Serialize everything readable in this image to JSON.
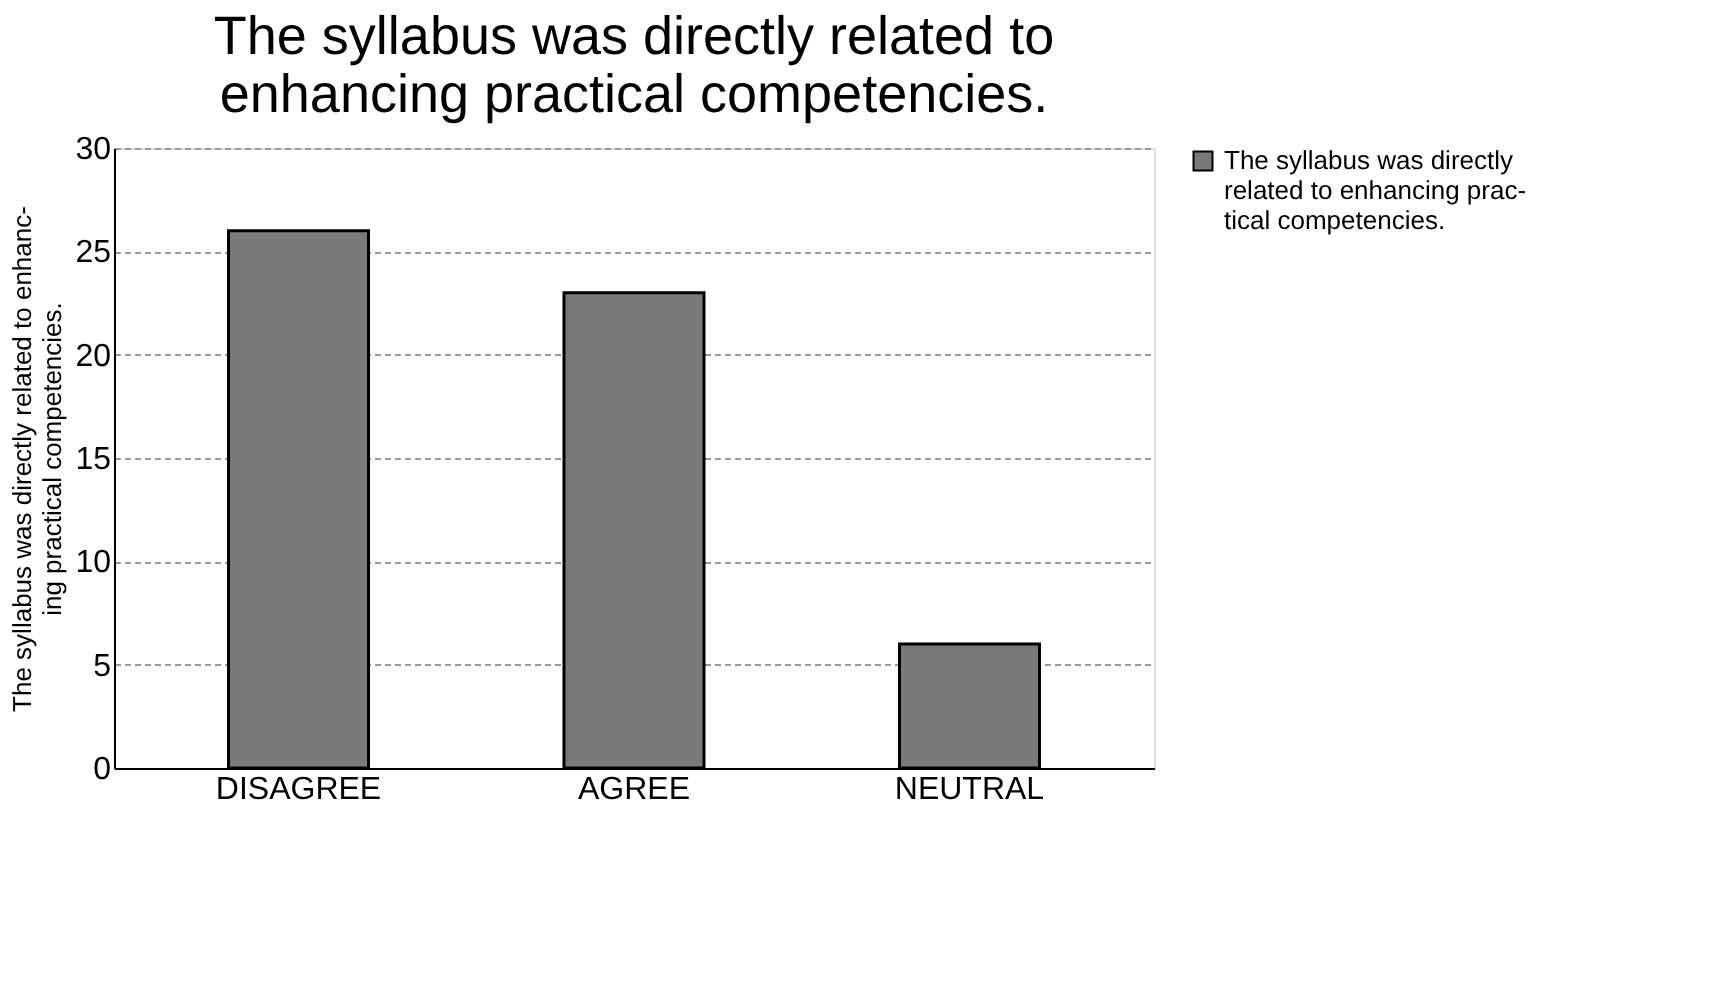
{
  "chart_data": {
    "type": "bar",
    "title": "The syllabus was directly related to\nenhancing practical competencies.",
    "ylabel": "The syllabus was directly related to enhanc-\ning practical competencies.",
    "categories": [
      "DISAGREE",
      "AGREE",
      "NEUTRAL"
    ],
    "series": [
      {
        "name": "The syllabus was directly\nrelated to enhancing prac-\ntical competencies.",
        "color": "#7a7a7a",
        "values": [
          26,
          23,
          6
        ]
      }
    ],
    "ylim": [
      0,
      30
    ],
    "yticks": [
      0,
      5,
      10,
      15,
      20,
      25,
      30
    ],
    "grid": "y",
    "legend": "right"
  }
}
